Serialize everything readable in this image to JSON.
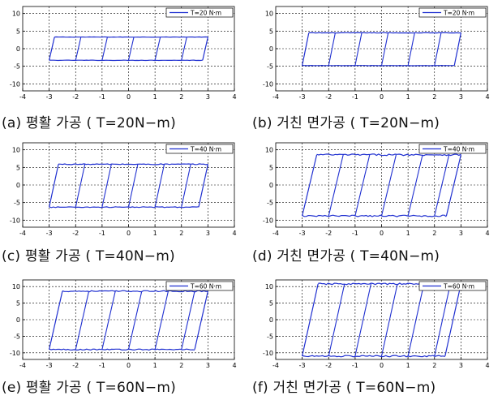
{
  "figure": {
    "panels": [
      {
        "id": "a",
        "caption": "(a) 평활 가공 ( T=20N−m)",
        "legend": "T=20 N·m"
      },
      {
        "id": "b",
        "caption": "(b) 거친 면가공 ( T=20N−m)",
        "legend": "T=20 N·m"
      },
      {
        "id": "c",
        "caption": "(c) 평활 가공 ( T=40N−m)",
        "legend": "T=40 N·m"
      },
      {
        "id": "d",
        "caption": "(d) 거친 면가공 ( T=40N−m)",
        "legend": "T=40 N·m"
      },
      {
        "id": "e",
        "caption": "(e) 평활 가공 ( T=60N−m)",
        "legend": "T=60 N·m"
      },
      {
        "id": "f",
        "caption": "(f) 거친 면가공 ( T=60N−m)",
        "legend": "T=60 N·m"
      }
    ]
  },
  "colors": {
    "series": "#1f2fd0",
    "axis": "#000000",
    "grid": "#000000"
  },
  "chart_data": [
    {
      "type": "line",
      "xlim": [
        -4,
        4
      ],
      "ylim": [
        -12,
        12
      ],
      "xticks": [
        -4,
        -3,
        -2,
        -1,
        0,
        1,
        2,
        3,
        4
      ],
      "yticks": [
        10,
        5,
        0,
        -5,
        -10
      ],
      "grid": true,
      "legend_position": "top-right",
      "xlabel": "",
      "ylabel": "",
      "title": "",
      "series": [
        {
          "name": "T=20 N·m",
          "loop": {
            "xmin": -3.0,
            "xmax": 3.0,
            "top": 3.3,
            "bottom": -3.3,
            "skew": 0.2,
            "edge": 0.1
          },
          "inner_x": [
            -2.0,
            -1.0,
            0.0,
            1.0,
            2.0
          ]
        }
      ]
    },
    {
      "type": "line",
      "xlim": [
        -4,
        4
      ],
      "ylim": [
        -12,
        12
      ],
      "xticks": [
        -4,
        -3,
        -2,
        -1,
        0,
        1,
        2,
        3,
        4
      ],
      "yticks": [
        10,
        5,
        0,
        -5,
        -10
      ],
      "grid": true,
      "legend_position": "top-right",
      "xlabel": "",
      "ylabel": "",
      "title": "",
      "series": [
        {
          "name": "T=20 N·m",
          "loop": {
            "xmin": -3.0,
            "xmax": 3.0,
            "top": 4.5,
            "bottom": -4.8,
            "skew": 0.25,
            "edge": 0.1
          },
          "inner_x": [
            -2.0,
            -1.0,
            0.0,
            1.0,
            2.0
          ]
        }
      ]
    },
    {
      "type": "line",
      "xlim": [
        -4,
        4
      ],
      "ylim": [
        -12,
        12
      ],
      "xticks": [
        -4,
        -3,
        -2,
        -1,
        0,
        1,
        2,
        3,
        4
      ],
      "yticks": [
        10,
        5,
        0,
        -5,
        -10
      ],
      "grid": true,
      "legend_position": "top-right",
      "xlabel": "",
      "ylabel": "",
      "title": "",
      "series": [
        {
          "name": "T=40 N·m",
          "loop": {
            "xmin": -3.0,
            "xmax": 3.0,
            "top": 5.9,
            "bottom": -6.3,
            "skew": 0.35,
            "edge": 0.25
          },
          "inner_x": [
            -2.0,
            -1.0,
            0.0,
            1.0,
            2.0
          ]
        }
      ]
    },
    {
      "type": "line",
      "xlim": [
        -4,
        4
      ],
      "ylim": [
        -12,
        12
      ],
      "xticks": [
        -4,
        -3,
        -2,
        -1,
        0,
        1,
        2,
        3,
        4
      ],
      "yticks": [
        10,
        5,
        0,
        -5,
        -10
      ],
      "grid": true,
      "legend_position": "top-right",
      "xlabel": "",
      "ylabel": "",
      "title": "",
      "series": [
        {
          "name": "T=40 N·m",
          "loop": {
            "xmin": -3.0,
            "xmax": 3.0,
            "top": 8.6,
            "bottom": -8.8,
            "skew": 0.55,
            "edge": 0.45
          },
          "inner_x": [
            -2.0,
            -1.0,
            0.0,
            1.0,
            2.0
          ]
        }
      ]
    },
    {
      "type": "line",
      "xlim": [
        -4,
        4
      ],
      "ylim": [
        -12,
        12
      ],
      "xticks": [
        -4,
        -3,
        -2,
        -1,
        0,
        1,
        2,
        3,
        4
      ],
      "yticks": [
        10,
        5,
        0,
        -5,
        -10
      ],
      "grid": true,
      "legend_position": "top-right",
      "xlabel": "",
      "ylabel": "",
      "title": "",
      "series": [
        {
          "name": "T=60 N·m",
          "loop": {
            "xmin": -3.0,
            "xmax": 3.0,
            "top": 8.6,
            "bottom": -9.0,
            "skew": 0.5,
            "edge": 0.35
          },
          "inner_x": [
            -2.0,
            -1.0,
            0.0,
            1.0,
            2.0
          ]
        }
      ]
    },
    {
      "type": "line",
      "xlim": [
        -4,
        4
      ],
      "ylim": [
        -12,
        12
      ],
      "xticks": [
        -4,
        -3,
        -2,
        -1,
        0,
        1,
        2,
        3,
        4
      ],
      "yticks": [
        10,
        5,
        0,
        -5,
        -10
      ],
      "grid": true,
      "legend_position": "top-right",
      "xlabel": "",
      "ylabel": "",
      "title": "",
      "series": [
        {
          "name": "T=60 N·m",
          "loop": {
            "xmin": -3.0,
            "xmax": 3.0,
            "top": 10.8,
            "bottom": -11.0,
            "skew": 0.6,
            "edge": 0.45
          },
          "inner_x": [
            -2.0,
            -1.0,
            0.0,
            1.0,
            2.0
          ]
        }
      ]
    }
  ]
}
